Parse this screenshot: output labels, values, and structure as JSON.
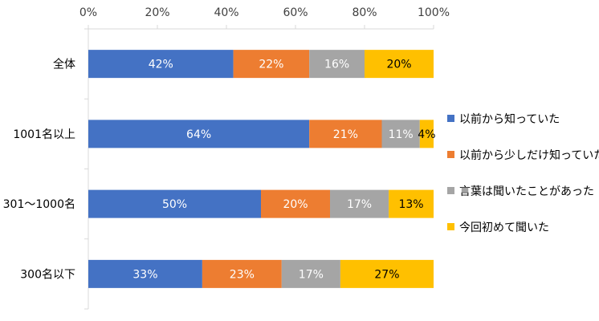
{
  "chart_data": {
    "type": "bar",
    "orientation": "horizontal",
    "stacked": true,
    "title": "",
    "xlabel": "",
    "ylabel": "",
    "xlim": [
      0,
      100
    ],
    "x_ticks": [
      "0%",
      "20%",
      "40%",
      "60%",
      "80%",
      "100%"
    ],
    "x_axis_position": "top",
    "grid": false,
    "legend_position": "right",
    "categories": [
      "全体",
      "1001名以上",
      "301〜1000名",
      "300名以下"
    ],
    "series": [
      {
        "name": "以前から知っていた",
        "color": "#4472C4",
        "label_color": "#ffffff",
        "values": [
          42,
          64,
          50,
          33
        ],
        "labels": [
          "42%",
          "64%",
          "50%",
          "33%"
        ]
      },
      {
        "name": "以前から少しだけ知っていた",
        "color": "#ED7D31",
        "label_color": "#ffffff",
        "values": [
          22,
          21,
          20,
          23
        ],
        "labels": [
          "22%",
          "21%",
          "20%",
          "23%"
        ]
      },
      {
        "name": "言葉は聞いたことがあった",
        "color": "#A5A5A5",
        "label_color": "#ffffff",
        "values": [
          16,
          11,
          17,
          17
        ],
        "labels": [
          "16%",
          "11%",
          "17%",
          "17%"
        ]
      },
      {
        "name": "今回初めて聞いた",
        "color": "#FFC000",
        "label_color": "#000000",
        "values": [
          20,
          4,
          13,
          27
        ],
        "labels": [
          "20%",
          "4%",
          "13%",
          "27%"
        ]
      }
    ]
  }
}
